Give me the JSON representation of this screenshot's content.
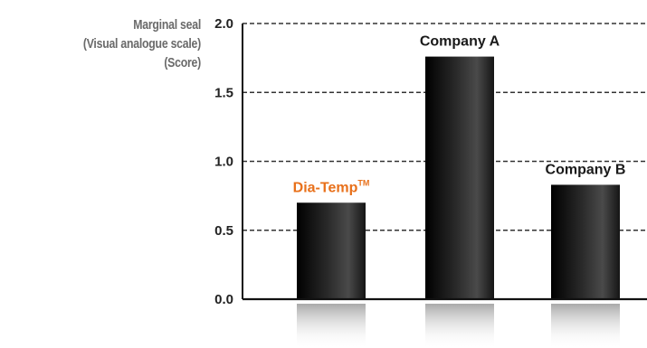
{
  "chart_data": {
    "type": "bar",
    "ylabel_lines": [
      "Marginal seal",
      "(Visual analogue scale)",
      "(Score)"
    ],
    "categories": [
      {
        "name": "Dia-Temp",
        "mark": "TM",
        "color": "#e8701a"
      },
      {
        "name": "Company A",
        "mark": "",
        "color": "#1a1a1a"
      },
      {
        "name": "Company B",
        "mark": "",
        "color": "#1a1a1a"
      }
    ],
    "values": [
      0.7,
      1.76,
      0.83
    ],
    "ylim": [
      0,
      2.0
    ],
    "yticks": [
      "0.0",
      "0.5",
      "1.0",
      "1.5",
      "2.0"
    ],
    "gridlines": "dashed",
    "bar_color": "#1c1c1c"
  }
}
